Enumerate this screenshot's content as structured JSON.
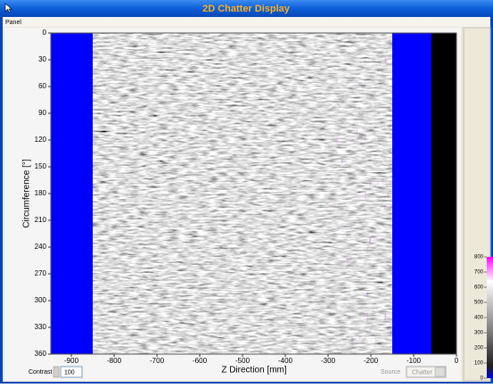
{
  "window": {
    "title": "2D Chatter Display"
  },
  "menu": [
    "Panel"
  ],
  "chart_data": {
    "type": "image",
    "xlabel": "Z Direction [mm]",
    "ylabel": "Circumference [°]",
    "xlim": [
      -948,
      0
    ],
    "xticks": [
      -900,
      -800,
      -700,
      -600,
      -500,
      -400,
      -300,
      -200,
      -100,
      0
    ],
    "ylim": [
      0,
      360
    ],
    "yticks": [
      0,
      30,
      60,
      90,
      120,
      150,
      180,
      210,
      240,
      270,
      300,
      330,
      360
    ],
    "colorbar": {
      "lim": [
        0,
        800
      ],
      "ticks": [
        0,
        100,
        200,
        300,
        400,
        500,
        600,
        700,
        800
      ]
    }
  },
  "controls": {
    "contrast_label": "Contrast",
    "contrast_value": "100",
    "source_label": "Source",
    "source_value": "Chatter"
  }
}
